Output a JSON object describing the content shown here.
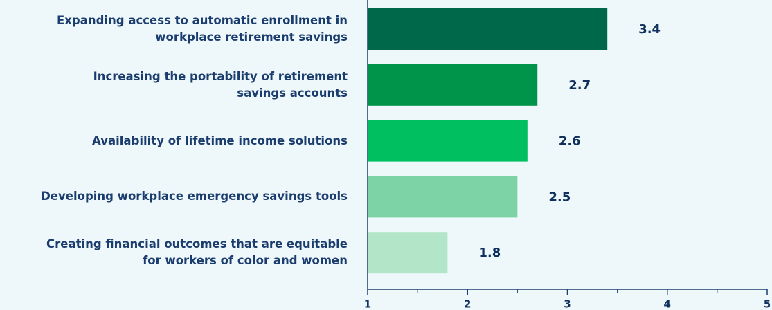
{
  "chart_data": {
    "type": "bar",
    "orientation": "horizontal",
    "categories": [
      "Expanding access to automatic enrollment in\nworkplace retirement savings",
      "Increasing the portability of retirement\nsavings accounts",
      "Availability of lifetime income solutions",
      "Developing workplace emergency savings tools",
      "Creating financial outcomes that are equitable\nfor workers of color and women"
    ],
    "values": [
      3.4,
      2.7,
      2.6,
      2.5,
      1.8
    ],
    "colors": [
      "#00684a",
      "#00934a",
      "#00bf60",
      "#7dd3a6",
      "#b3e6c8"
    ],
    "xlim": [
      1,
      5
    ],
    "xticks": [
      1,
      2,
      3,
      4,
      5
    ],
    "xminor_ticks": [
      1.5,
      2.5,
      3.5,
      4.5
    ]
  }
}
